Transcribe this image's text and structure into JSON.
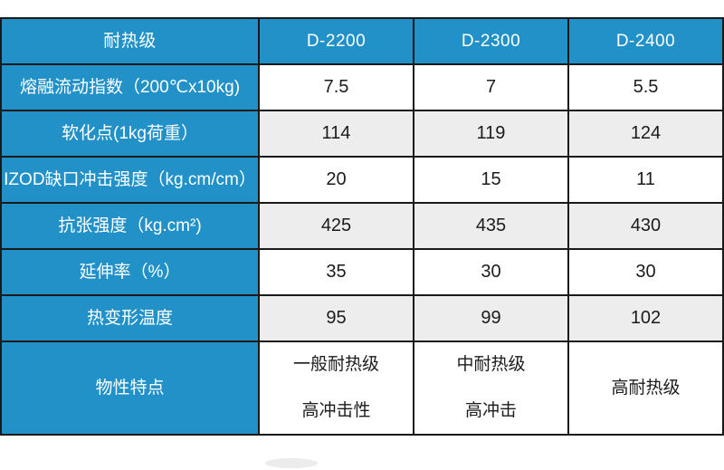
{
  "page": {
    "background_color": "#ffffff",
    "accent_color": "#2191C8",
    "stripe_color": "#EDEDED",
    "border_color": "#1a1a1a"
  },
  "chart_data": {
    "type": "table",
    "title": "",
    "columns": [
      "耐热级",
      "D-2200",
      "D-2300",
      "D-2400"
    ],
    "rows": [
      [
        "熔融流动指数（200℃x10kg)",
        "7.5",
        "7",
        "5.5"
      ],
      [
        "软化点(1kg荷重）",
        "114",
        "119",
        "124"
      ],
      [
        "IZOD缺口冲击强度（kg.cm/cm）",
        "20",
        "15",
        "11"
      ],
      [
        "抗张强度（kg.cm²)",
        "425",
        "435",
        "430"
      ],
      [
        "延伸率（%）",
        "35",
        "30",
        "30"
      ],
      [
        "热变形温度",
        "95",
        "99",
        "102"
      ],
      [
        "物性特点",
        "一般耐热级\n高冲击性",
        "中耐热级\n高冲击",
        "高耐热级"
      ]
    ],
    "layout": {
      "header_fill": "#2191C8",
      "label_column_fill": "#2191C8",
      "striped_row_indices": [
        1,
        3,
        5
      ],
      "grid_on": true
    }
  }
}
